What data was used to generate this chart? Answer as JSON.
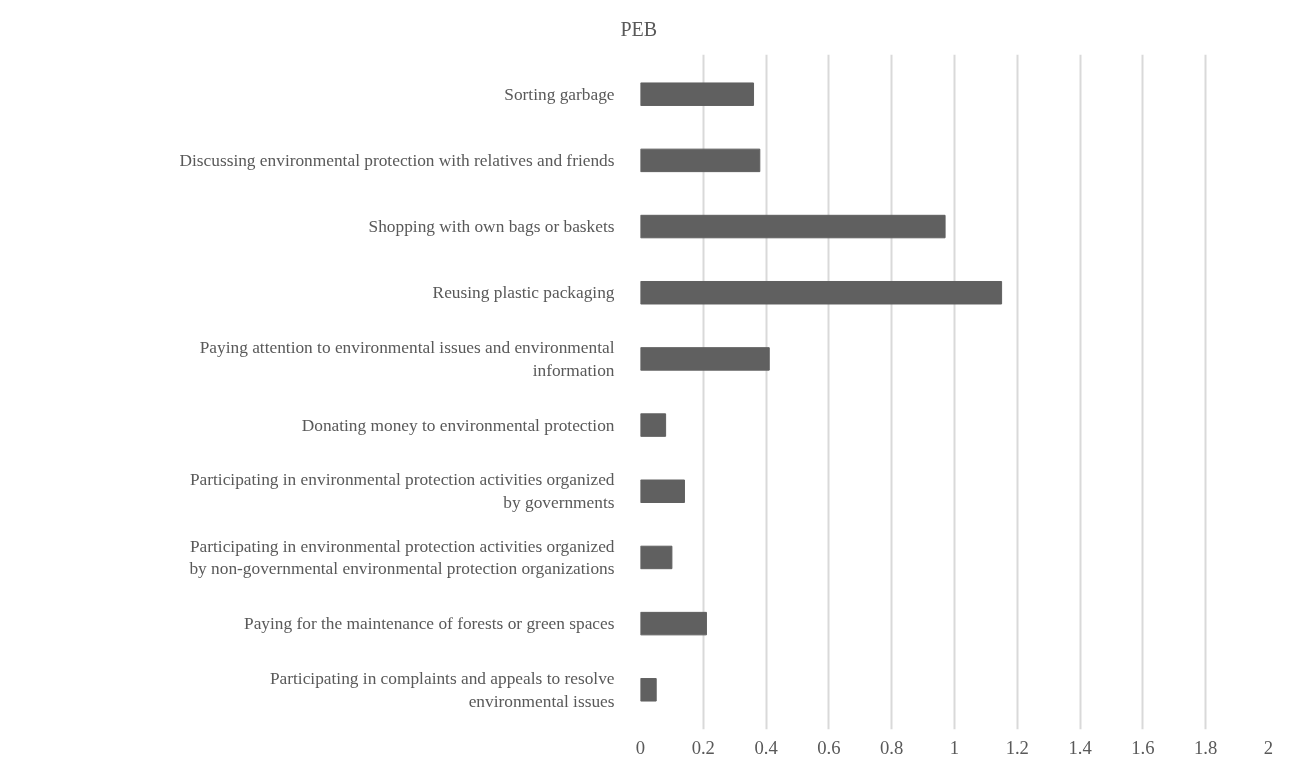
{
  "chart_data": {
    "type": "bar",
    "orientation": "horizontal",
    "title": "PEB",
    "categories": [
      "Sorting garbage",
      "Discussing environmental protection with relatives and friends",
      "Shopping with own bags or baskets",
      "Reusing plastic packaging",
      "Paying attention to environmental issues and environmental information",
      "Donating money to environmental protection",
      "Participating in environmental protection activities organized by governments",
      "Participating in environmental protection activities organized by non-governmental environmental protection organizations",
      "Paying for the maintenance of forests or green spaces",
      "Participating in complaints and appeals to resolve environmental issues"
    ],
    "values": [
      0.36,
      0.38,
      0.97,
      1.15,
      0.41,
      0.08,
      0.14,
      0.1,
      0.21,
      0.05
    ],
    "color": "#606060",
    "xlim": [
      0,
      2
    ],
    "xticks": [
      0,
      0.2,
      0.4,
      0.6,
      0.8,
      1,
      1.2,
      1.4,
      1.6,
      1.8,
      2
    ],
    "grid": "x"
  }
}
